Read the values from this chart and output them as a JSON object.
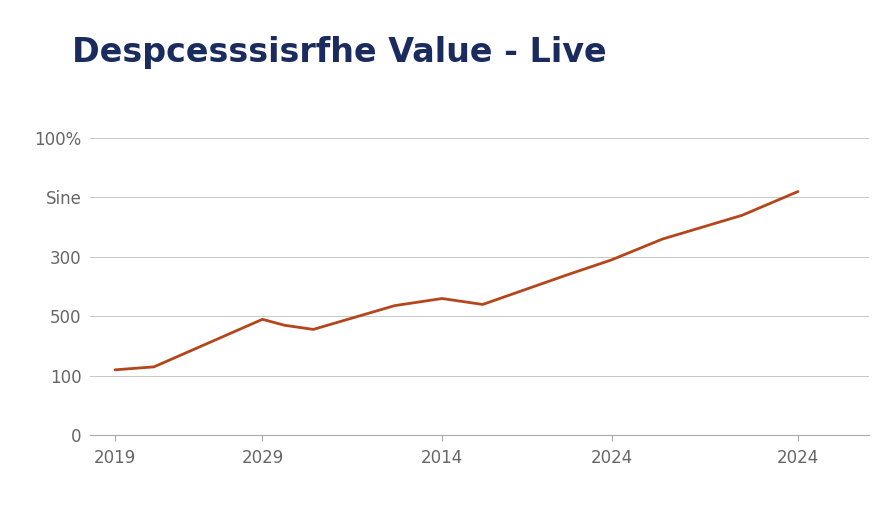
{
  "title": "Despcesssisrfhe Value - Live",
  "title_color": "#1a2b5e",
  "title_fontsize": 24,
  "title_fontweight": "bold",
  "background_color": "#ffffff",
  "x_labels": [
    "2019",
    "2029",
    "2014",
    "2024",
    "2024"
  ],
  "y_tick_labels": [
    "0",
    "100",
    "500",
    "300",
    "Sine",
    "100%"
  ],
  "y_tick_positions": [
    0,
    100,
    200,
    300,
    400,
    500
  ],
  "y_points": [
    110,
    115,
    195,
    185,
    178,
    218,
    230,
    220,
    270,
    295,
    330,
    370,
    410
  ],
  "x_points": [
    0.05,
    0.28,
    0.92,
    1.05,
    1.22,
    1.7,
    1.98,
    2.22,
    2.72,
    2.98,
    3.28,
    3.75,
    4.08
  ],
  "x_tick_pos": [
    0.05,
    0.92,
    1.98,
    2.98,
    4.08
  ],
  "line_color": "#b5451b",
  "line_width": 2.0,
  "grid_color": "#c8c8c8",
  "grid_linewidth": 0.7,
  "xlim": [
    -0.1,
    4.5
  ],
  "ylim": [
    0,
    560
  ],
  "xlabel_color": "#666666",
  "ylabel_color": "#666666",
  "tick_fontsize": 12,
  "figsize": [
    8.96,
    5.12
  ],
  "dpi": 100
}
